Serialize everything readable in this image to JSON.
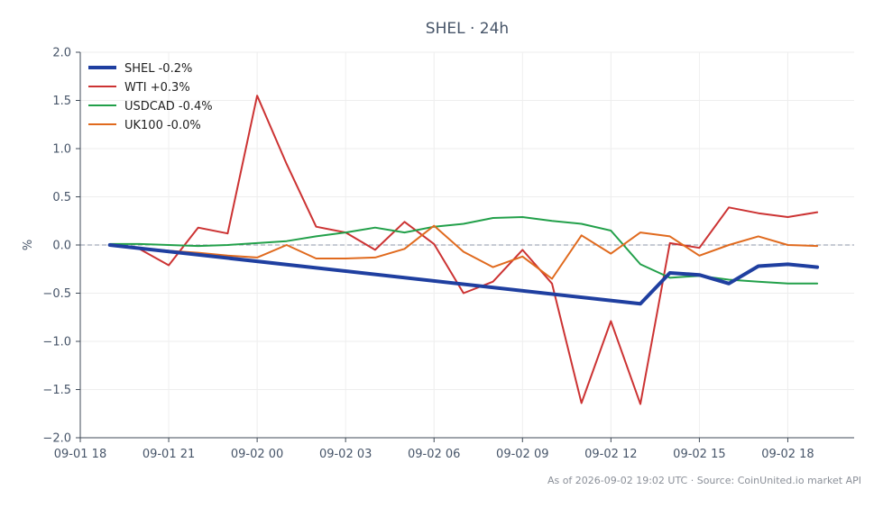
{
  "chart_data": {
    "type": "line",
    "title": "SHEL · 24h",
    "ylabel": "%",
    "xlabel": "",
    "ylim": [
      -2.0,
      2.0
    ],
    "yticks": [
      "2.0",
      "1.5",
      "1.0",
      "0.5",
      "0.0",
      "−0.5",
      "−1.0",
      "−1.5",
      "−2.0"
    ],
    "ytick_values": [
      2.0,
      1.5,
      1.0,
      0.5,
      0.0,
      -0.5,
      -1.0,
      -1.5,
      -2.0
    ],
    "xlim": [
      "09-01 18:00",
      "09-02 20:15"
    ],
    "xticks": [
      {
        "label": "09-01 18",
        "t": "09-01 18:00"
      },
      {
        "label": "09-01 21",
        "t": "09-01 21:00"
      },
      {
        "label": "09-02 00",
        "t": "09-02 00:00"
      },
      {
        "label": "09-02 03",
        "t": "09-02 03:00"
      },
      {
        "label": "09-02 06",
        "t": "09-02 06:00"
      },
      {
        "label": "09-02 09",
        "t": "09-02 09:00"
      },
      {
        "label": "09-02 12",
        "t": "09-02 12:00"
      },
      {
        "label": "09-02 15",
        "t": "09-02 15:00"
      },
      {
        "label": "09-02 18",
        "t": "09-02 18:00"
      }
    ],
    "x": [
      "09-01 19:00",
      "09-01 20:00",
      "09-01 21:00",
      "09-01 22:00",
      "09-01 23:00",
      "09-02 00:00",
      "09-02 01:00",
      "09-02 02:00",
      "09-02 03:00",
      "09-02 04:00",
      "09-02 05:00",
      "09-02 06:00",
      "09-02 07:00",
      "09-02 08:00",
      "09-02 09:00",
      "09-02 10:00",
      "09-02 11:00",
      "09-02 12:00",
      "09-02 13:00",
      "09-02 14:00",
      "09-02 15:00",
      "09-02 16:00",
      "09-02 17:00",
      "09-02 18:00",
      "09-02 19:00"
    ],
    "series": [
      {
        "name": "SHEL -0.2%",
        "color": "#1f3fa0",
        "width": 4,
        "points": [
          [
            "09-01 19:00",
            0.0
          ],
          [
            "09-02 13:00",
            -0.61
          ],
          [
            "09-02 14:00",
            -0.29
          ],
          [
            "09-02 15:00",
            -0.31
          ],
          [
            "09-02 16:00",
            -0.4
          ],
          [
            "09-02 17:00",
            -0.22
          ],
          [
            "09-02 18:00",
            -0.2
          ],
          [
            "09-02 19:00",
            -0.23
          ]
        ]
      },
      {
        "name": "WTI +0.3%",
        "color": "#cc3333",
        "width": 2,
        "values": [
          0.0,
          -0.04,
          -0.21,
          0.18,
          0.12,
          1.55,
          0.84,
          0.19,
          0.13,
          -0.05,
          0.24,
          0.01,
          -0.5,
          -0.38,
          -0.05,
          -0.4,
          -1.64,
          -0.79,
          -1.65,
          0.02,
          -0.03,
          0.39,
          0.33,
          0.29,
          0.34
        ]
      },
      {
        "name": "USDCAD -0.4%",
        "color": "#22a04a",
        "width": 2,
        "values": [
          0.01,
          0.01,
          0.0,
          -0.01,
          0.0,
          0.02,
          0.04,
          0.09,
          0.13,
          0.18,
          0.13,
          0.19,
          0.22,
          0.28,
          0.29,
          0.25,
          0.22,
          0.15,
          -0.2,
          -0.34,
          -0.32,
          -0.36,
          -0.38,
          -0.4,
          -0.4
        ]
      },
      {
        "name": "UK100 -0.0%",
        "color": "#e06a1e",
        "width": 2,
        "values": [
          0.0,
          -0.03,
          -0.06,
          -0.08,
          -0.11,
          -0.13,
          0.0,
          -0.14,
          -0.14,
          -0.13,
          -0.04,
          0.2,
          -0.07,
          -0.23,
          -0.12,
          -0.35,
          0.1,
          -0.09,
          0.13,
          0.09,
          -0.11,
          0.0,
          0.09,
          0.0,
          -0.01
        ]
      }
    ],
    "zero_line": true,
    "grid": true,
    "legend": "top-left"
  },
  "footer": {
    "text": "As of 2026-09-02 19:02 UTC · Source: CoinUnited.io market API"
  }
}
